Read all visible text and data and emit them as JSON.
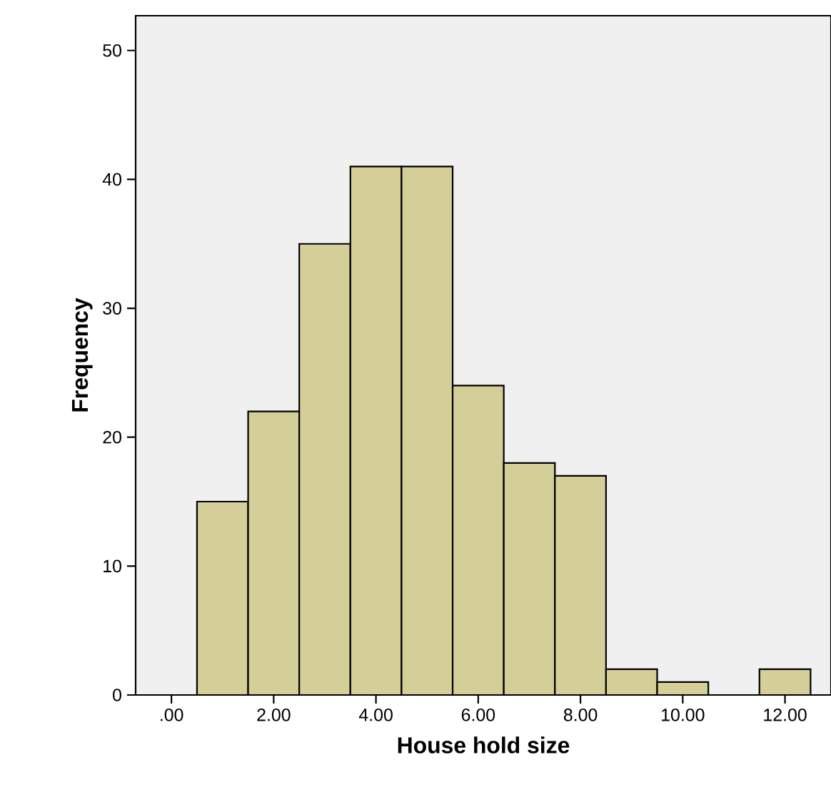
{
  "chart_data": {
    "type": "histogram",
    "xlabel": "House hold size",
    "ylabel": "Frequency",
    "bins": [
      0.5,
      1.5,
      2.5,
      3.5,
      4.5,
      5.5,
      6.5,
      7.5,
      8.5,
      9.5,
      10.5,
      11.5,
      12.5
    ],
    "values": [
      15,
      22,
      35,
      41,
      41,
      24,
      18,
      17,
      2,
      1,
      0,
      2
    ],
    "color": "#d4cf98",
    "xlim": [
      -0.7,
      12.9
    ],
    "ylim": [
      0,
      52.7
    ],
    "xticks": [
      {
        "value": 0,
        "label": ".00"
      },
      {
        "value": 2,
        "label": "2.00"
      },
      {
        "value": 4,
        "label": "4.00"
      },
      {
        "value": 6,
        "label": "6.00"
      },
      {
        "value": 8,
        "label": "8.00"
      },
      {
        "value": 10,
        "label": "10.00"
      },
      {
        "value": 12,
        "label": "12.00"
      }
    ],
    "yticks": [
      0,
      10,
      20,
      30,
      40,
      50
    ]
  }
}
